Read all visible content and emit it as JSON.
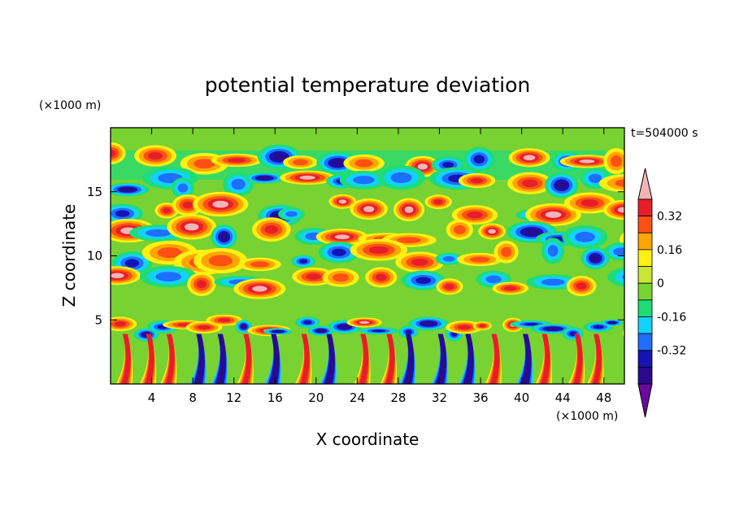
{
  "chart_data": {
    "type": "heatmap",
    "title": "potential temperature deviation",
    "xlabel": "X coordinate",
    "ylabel": "Z coordinate",
    "x_unit": "(×1000 m)",
    "z_unit": "(×1000 m)",
    "time_label": "t=504000 s",
    "xlim": [
      0,
      50
    ],
    "ylim": [
      0,
      20
    ],
    "x_ticks": [
      4,
      8,
      12,
      16,
      20,
      24,
      28,
      32,
      36,
      40,
      44,
      48
    ],
    "y_ticks": [
      5,
      10,
      15
    ],
    "colorbar": {
      "levels": [
        -0.48,
        -0.4,
        -0.32,
        -0.24,
        -0.16,
        -0.08,
        0,
        0.08,
        0.16,
        0.24,
        0.32,
        0.4
      ],
      "colors": [
        "#6a0a9e",
        "#2a0a8e",
        "#1414b4",
        "#1e6eff",
        "#14d2ff",
        "#1edc78",
        "#78d232",
        "#c8e632",
        "#fff014",
        "#ffa500",
        "#ff5014",
        "#e61e28",
        "#f5b4b4"
      ],
      "labels": [
        "0.32",
        "0.16",
        "0",
        "-0.16",
        "-0.32"
      ],
      "label_values": [
        0.32,
        0.16,
        0,
        -0.16,
        -0.32
      ]
    }
  }
}
